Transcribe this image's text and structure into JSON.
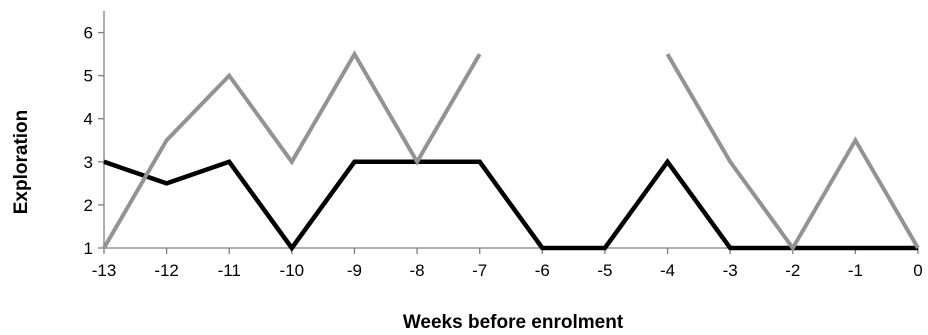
{
  "chart_data": {
    "type": "line",
    "xlabel": "Weeks before enrolment",
    "ylabel": "Exploration",
    "x": [
      -13,
      -12,
      -11,
      -10,
      -9,
      -8,
      -7,
      -6,
      -5,
      -4,
      -3,
      -2,
      -1,
      0
    ],
    "x_tick_labels": [
      "-13",
      "-12",
      "-11",
      "-10",
      "-9",
      "-8",
      "-7",
      "-6",
      "-5",
      "-4",
      "-3",
      "-2",
      "-1",
      "0"
    ],
    "y_ticks": [
      1,
      2,
      3,
      4,
      5,
      6
    ],
    "y_tick_labels": [
      "1",
      "2",
      "3",
      "4",
      "5",
      "6"
    ],
    "ylim": [
      1,
      6.5
    ],
    "xlim": [
      -13,
      0
    ],
    "grid": false,
    "legend": false,
    "series": [
      {
        "color": "#000000",
        "values": [
          3,
          2.5,
          3,
          1,
          3,
          3,
          3,
          1,
          1,
          3,
          1,
          1,
          1,
          1
        ]
      },
      {
        "color": "#939393",
        "values": [
          1,
          3.5,
          5,
          3,
          5.5,
          3,
          5.5,
          null,
          null,
          5.5,
          3,
          1,
          3.5,
          1
        ]
      }
    ]
  }
}
